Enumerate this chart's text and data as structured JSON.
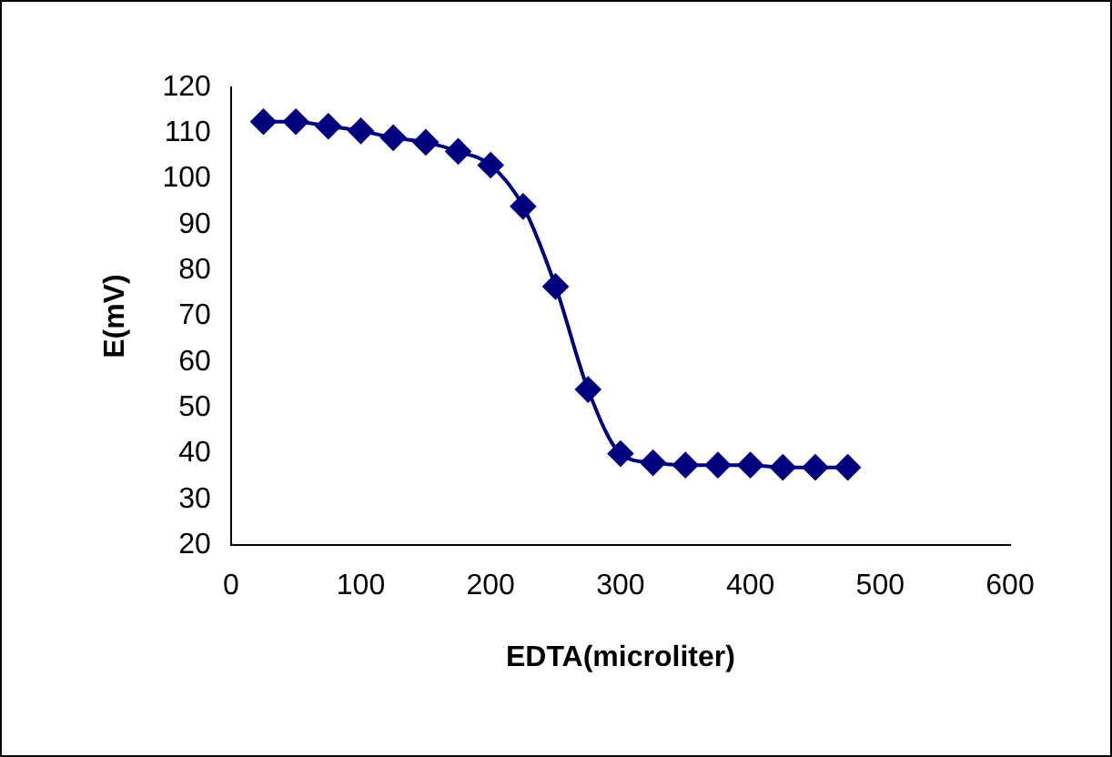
{
  "chart_data": {
    "type": "line",
    "xlabel": "EDTA(microliter)",
    "ylabel": "E(mV)",
    "x": [
      25,
      50,
      75,
      100,
      125,
      150,
      175,
      200,
      225,
      250,
      275,
      300,
      325,
      350,
      375,
      400,
      425,
      450,
      475
    ],
    "series": [
      {
        "color": "#00007f",
        "values": [
          112.5,
          112.5,
          111.5,
          110.5,
          109,
          108,
          106,
          103,
          94,
          76.5,
          54,
          40,
          38,
          37.5,
          37.5,
          37.5,
          37,
          37,
          37
        ]
      }
    ],
    "xlim": [
      0,
      600
    ],
    "xticks": [
      0,
      100,
      200,
      300,
      400,
      500,
      600
    ],
    "ylim": [
      20,
      120
    ],
    "yticks": [
      20,
      30,
      40,
      50,
      60,
      70,
      80,
      90,
      100,
      110,
      120
    ],
    "grid": false,
    "legend": false,
    "marker": "diamond",
    "line_style": "solid"
  }
}
